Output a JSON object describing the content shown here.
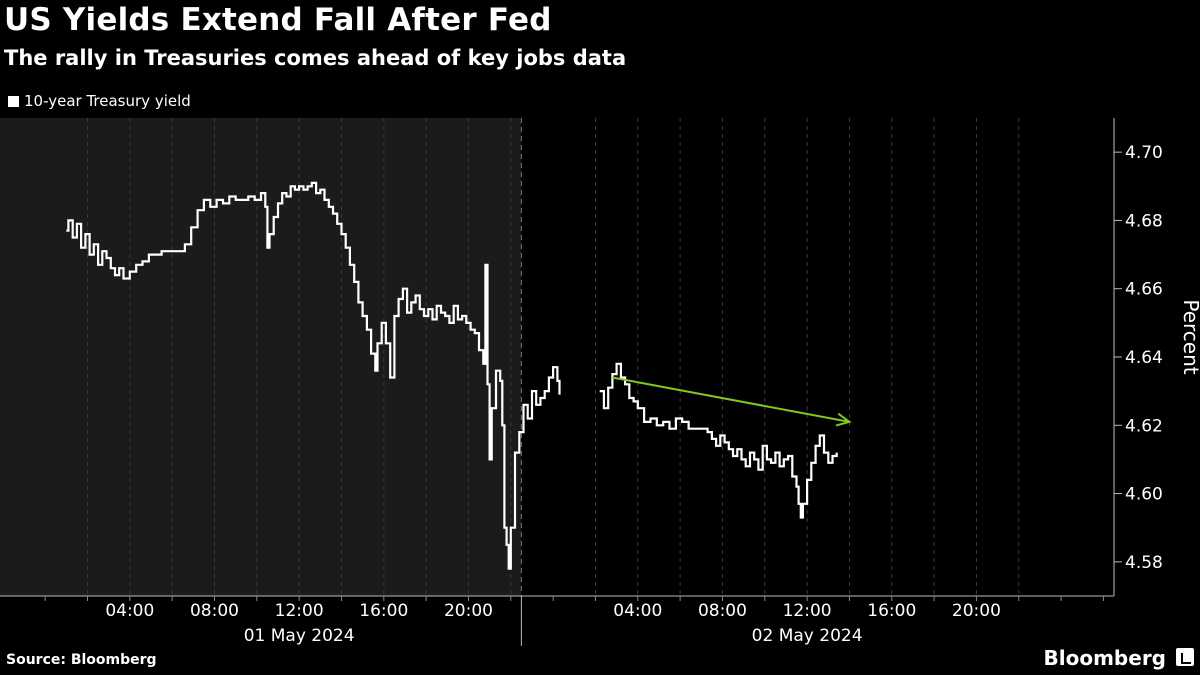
{
  "header": {
    "title": "US Yields Extend Fall After Fed",
    "subtitle": "The rally in Treasuries comes ahead of key jobs data"
  },
  "legend": {
    "label": "10-year Treasury yield"
  },
  "footer": {
    "source": "Source: Bloomberg",
    "brand": "Bloomberg"
  },
  "colors": {
    "line": "#ffffff",
    "arrow": "#7fc81f",
    "shade": "#1b1b1b",
    "background": "#000000",
    "grid": "#555555"
  },
  "chart_data": {
    "type": "line",
    "title": "US Yields Extend Fall After Fed",
    "subtitle": "The rally in Treasuries comes ahead of key jobs data",
    "ylabel": "Percent",
    "ylim": [
      4.57,
      4.71
    ],
    "yticks": [
      4.58,
      4.6,
      4.62,
      4.64,
      4.66,
      4.68,
      4.7
    ],
    "ytick_labels": [
      "4.58",
      "4.60",
      "4.62",
      "4.64",
      "4.66",
      "4.68",
      "4.70"
    ],
    "x_unit": "hours since 01 May 2024 00:00",
    "xlim": [
      -1,
      50.5
    ],
    "xticks": [
      4,
      8,
      12,
      16,
      20,
      28,
      32,
      36,
      40,
      44
    ],
    "xtick_labels": [
      "04:00",
      "08:00",
      "12:00",
      "16:00",
      "20:00",
      "04:00",
      "08:00",
      "12:00",
      "16:00",
      "20:00"
    ],
    "date_labels": [
      {
        "label": "01 May 2024",
        "x": 12
      },
      {
        "label": "02 May 2024",
        "x": 36
      }
    ],
    "shaded_region": [
      -1,
      22.5
    ],
    "legend_position": "top-left",
    "grid": "dashed vertical",
    "series": [
      {
        "name": "10-year Treasury yield",
        "segments": [
          [
            [
              1.0,
              4.677
            ],
            [
              1.1,
              4.68
            ],
            [
              1.3,
              4.675
            ],
            [
              1.5,
              4.679
            ],
            [
              1.7,
              4.672
            ],
            [
              1.9,
              4.676
            ],
            [
              2.1,
              4.67
            ],
            [
              2.3,
              4.673
            ],
            [
              2.5,
              4.667
            ],
            [
              2.7,
              4.671
            ],
            [
              2.9,
              4.669
            ],
            [
              3.1,
              4.666
            ],
            [
              3.3,
              4.664
            ],
            [
              3.5,
              4.666
            ],
            [
              3.7,
              4.663
            ],
            [
              4.0,
              4.665
            ],
            [
              4.3,
              4.667
            ],
            [
              4.6,
              4.668
            ],
            [
              4.9,
              4.67
            ],
            [
              5.2,
              4.67
            ],
            [
              5.5,
              4.671
            ],
            [
              6.0,
              4.671
            ],
            [
              6.3,
              4.671
            ],
            [
              6.6,
              4.673
            ],
            [
              6.9,
              4.678
            ],
            [
              7.2,
              4.683
            ],
            [
              7.5,
              4.686
            ],
            [
              7.8,
              4.684
            ],
            [
              8.1,
              4.686
            ],
            [
              8.4,
              4.685
            ],
            [
              8.7,
              4.687
            ],
            [
              9.0,
              4.686
            ],
            [
              9.3,
              4.686
            ],
            [
              9.6,
              4.687
            ],
            [
              9.9,
              4.686
            ],
            [
              10.2,
              4.688
            ],
            [
              10.4,
              4.684
            ],
            [
              10.5,
              4.672
            ],
            [
              10.6,
              4.676
            ],
            [
              10.8,
              4.681
            ],
            [
              11.0,
              4.685
            ],
            [
              11.2,
              4.688
            ],
            [
              11.4,
              4.687
            ],
            [
              11.6,
              4.69
            ],
            [
              11.8,
              4.689
            ],
            [
              12.0,
              4.69
            ],
            [
              12.2,
              4.689
            ],
            [
              12.4,
              4.69
            ],
            [
              12.6,
              4.691
            ],
            [
              12.8,
              4.688
            ],
            [
              13.0,
              4.689
            ],
            [
              13.2,
              4.686
            ],
            [
              13.4,
              4.684
            ],
            [
              13.6,
              4.682
            ],
            [
              13.8,
              4.679
            ],
            [
              14.0,
              4.676
            ],
            [
              14.2,
              4.672
            ],
            [
              14.4,
              4.667
            ],
            [
              14.6,
              4.662
            ],
            [
              14.8,
              4.656
            ],
            [
              15.0,
              4.652
            ],
            [
              15.2,
              4.648
            ],
            [
              15.4,
              4.641
            ],
            [
              15.6,
              4.636
            ],
            [
              15.7,
              4.644
            ],
            [
              15.9,
              4.65
            ],
            [
              16.1,
              4.644
            ],
            [
              16.3,
              4.634
            ],
            [
              16.5,
              4.652
            ],
            [
              16.7,
              4.657
            ],
            [
              16.9,
              4.66
            ],
            [
              17.1,
              4.653
            ],
            [
              17.3,
              4.656
            ],
            [
              17.5,
              4.658
            ],
            [
              17.7,
              4.654
            ],
            [
              17.9,
              4.652
            ],
            [
              18.1,
              4.654
            ],
            [
              18.3,
              4.651
            ],
            [
              18.5,
              4.655
            ],
            [
              18.7,
              4.653
            ],
            [
              18.9,
              4.652
            ],
            [
              19.1,
              4.65
            ],
            [
              19.3,
              4.655
            ],
            [
              19.5,
              4.651
            ],
            [
              19.7,
              4.652
            ],
            [
              19.9,
              4.65
            ],
            [
              20.1,
              4.648
            ],
            [
              20.3,
              4.647
            ],
            [
              20.5,
              4.642
            ],
            [
              20.7,
              4.638
            ],
            [
              20.8,
              4.667
            ],
            [
              20.9,
              4.632
            ],
            [
              21.0,
              4.61
            ],
            [
              21.1,
              4.625
            ],
            [
              21.3,
              4.636
            ],
            [
              21.5,
              4.633
            ],
            [
              21.6,
              4.62
            ],
            [
              21.7,
              4.59
            ],
            [
              21.8,
              4.585
            ],
            [
              21.9,
              4.578
            ],
            [
              22.0,
              4.59
            ],
            [
              22.2,
              4.612
            ],
            [
              22.4,
              4.618
            ],
            [
              22.6,
              4.626
            ],
            [
              22.8,
              4.622
            ],
            [
              23.0,
              4.63
            ],
            [
              23.2,
              4.626
            ],
            [
              23.4,
              4.628
            ],
            [
              23.6,
              4.63
            ],
            [
              23.8,
              4.634
            ],
            [
              24.0,
              4.637
            ],
            [
              24.2,
              4.633
            ],
            [
              24.3,
              4.629
            ]
          ],
          [
            [
              26.2,
              4.63
            ],
            [
              26.4,
              4.625
            ],
            [
              26.6,
              4.631
            ],
            [
              26.8,
              4.635
            ],
            [
              27.0,
              4.638
            ],
            [
              27.2,
              4.634
            ],
            [
              27.4,
              4.632
            ],
            [
              27.6,
              4.628
            ],
            [
              27.8,
              4.627
            ],
            [
              28.0,
              4.625
            ],
            [
              28.3,
              4.621
            ],
            [
              28.6,
              4.622
            ],
            [
              28.9,
              4.62
            ],
            [
              29.2,
              4.621
            ],
            [
              29.5,
              4.619
            ],
            [
              29.8,
              4.622
            ],
            [
              30.1,
              4.621
            ],
            [
              30.4,
              4.619
            ],
            [
              30.7,
              4.619
            ],
            [
              31.0,
              4.619
            ],
            [
              31.3,
              4.618
            ],
            [
              31.5,
              4.616
            ],
            [
              31.7,
              4.614
            ],
            [
              31.9,
              4.617
            ],
            [
              32.1,
              4.615
            ],
            [
              32.3,
              4.613
            ],
            [
              32.5,
              4.611
            ],
            [
              32.7,
              4.613
            ],
            [
              32.9,
              4.61
            ],
            [
              33.1,
              4.608
            ],
            [
              33.3,
              4.612
            ],
            [
              33.5,
              4.61
            ],
            [
              33.7,
              4.607
            ],
            [
              33.9,
              4.614
            ],
            [
              34.1,
              4.61
            ],
            [
              34.3,
              4.609
            ],
            [
              34.5,
              4.612
            ],
            [
              34.7,
              4.608
            ],
            [
              34.9,
              4.61
            ],
            [
              35.1,
              4.611
            ],
            [
              35.3,
              4.605
            ],
            [
              35.5,
              4.602
            ],
            [
              35.6,
              4.597
            ],
            [
              35.7,
              4.593
            ],
            [
              35.8,
              4.597
            ],
            [
              36.0,
              4.604
            ],
            [
              36.2,
              4.609
            ],
            [
              36.4,
              4.614
            ],
            [
              36.6,
              4.617
            ],
            [
              36.8,
              4.612
            ],
            [
              37.0,
              4.609
            ],
            [
              37.2,
              4.611
            ],
            [
              37.4,
              4.612
            ]
          ]
        ]
      }
    ],
    "annotations": [
      {
        "type": "arrow",
        "from": [
          26.8,
          4.634
        ],
        "to": [
          38.0,
          4.621
        ]
      }
    ]
  }
}
